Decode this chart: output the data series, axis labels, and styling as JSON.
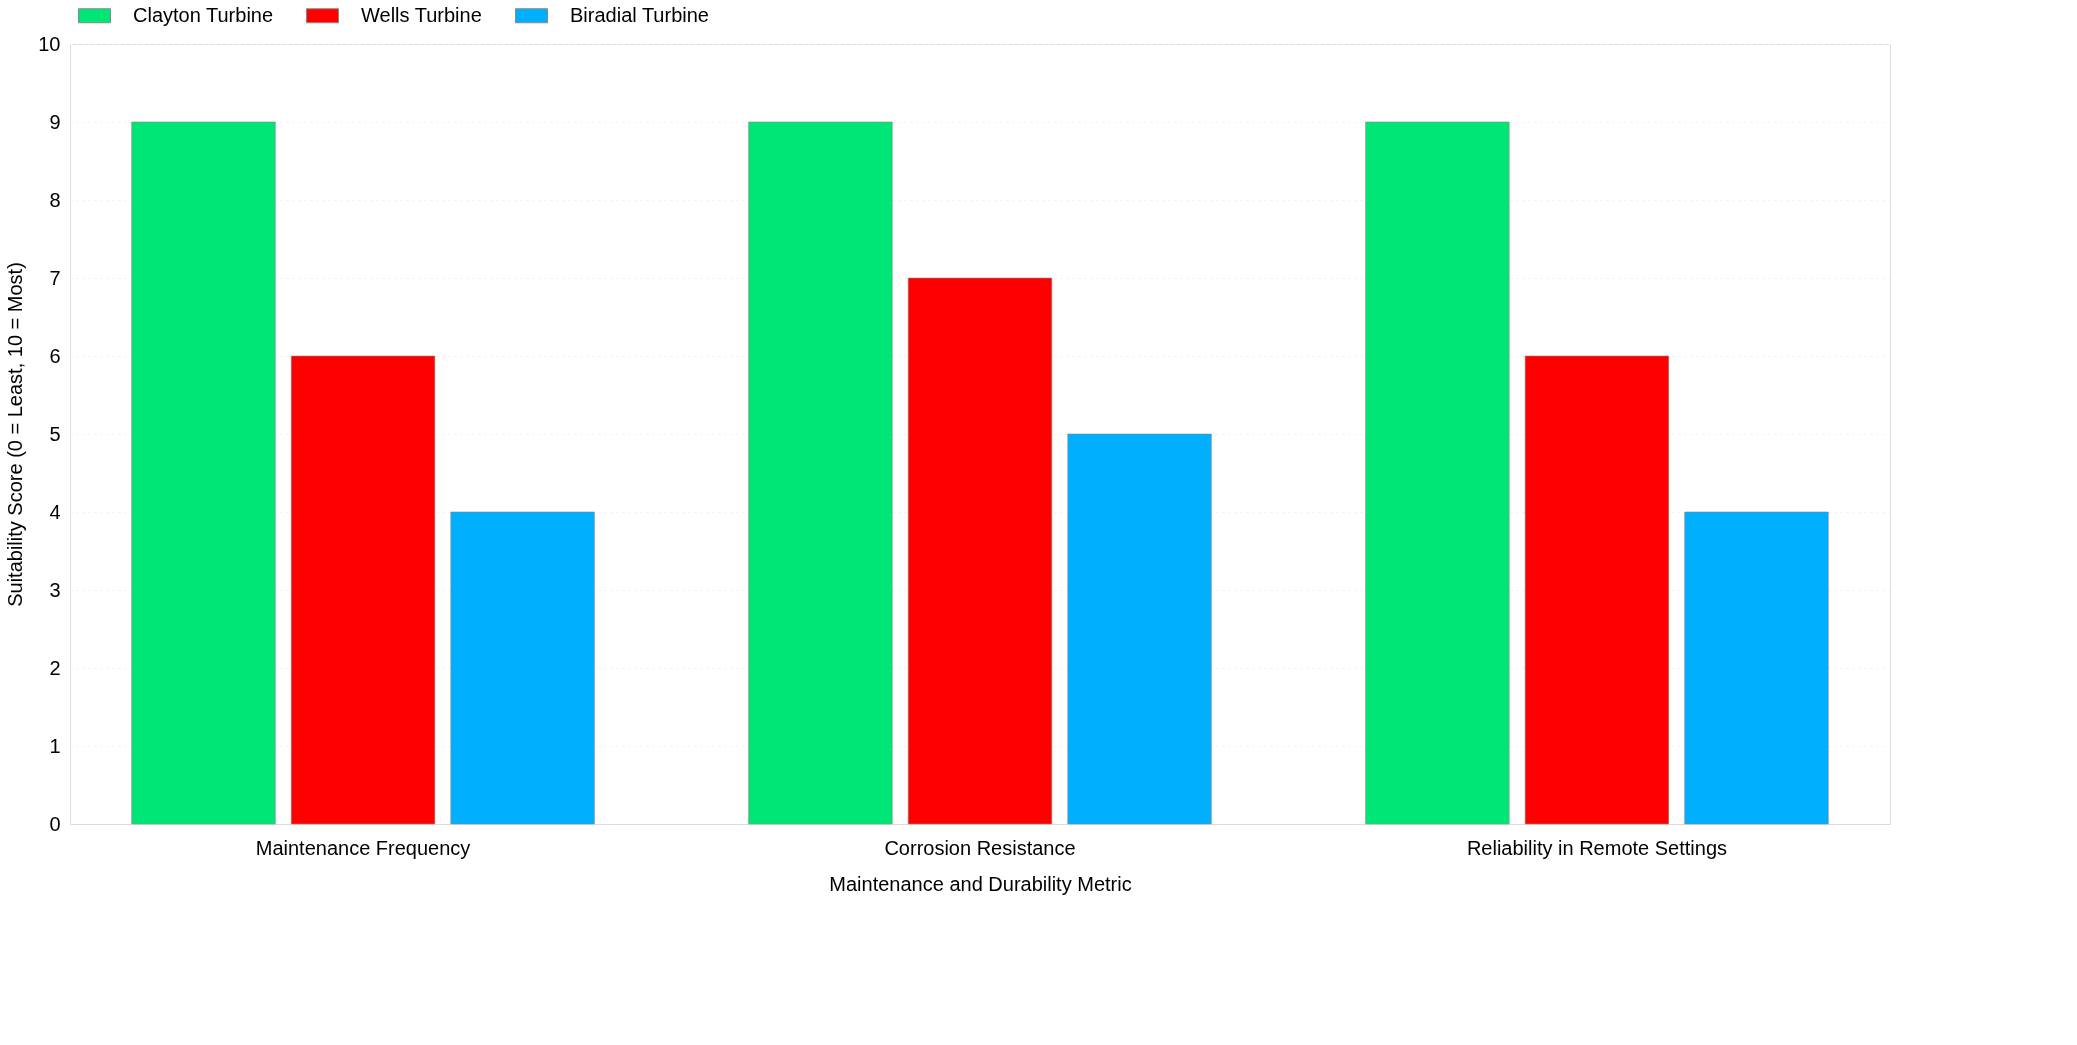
{
  "chart_data": {
    "type": "bar",
    "categories": [
      "Maintenance Frequency",
      "Corrosion Resistance",
      "Reliability in Remote Settings"
    ],
    "series": [
      {
        "name": "Clayton Turbine",
        "color": "#00e676",
        "values": [
          9,
          9,
          9
        ]
      },
      {
        "name": "Wells Turbine",
        "color": "#ff0000",
        "values": [
          6,
          7,
          6
        ]
      },
      {
        "name": "Biradial Turbine",
        "color": "#00b0ff",
        "values": [
          4,
          5,
          4
        ]
      }
    ],
    "xlabel": "Maintenance and Durability Metric",
    "ylabel": "Suitability Score (0 = Least, 10 = Most)",
    "ylim": [
      0,
      10
    ],
    "yticks": [
      0,
      1,
      2,
      3,
      4,
      5,
      6,
      7,
      8,
      9,
      10
    ],
    "grid": "y",
    "legend": "top"
  }
}
